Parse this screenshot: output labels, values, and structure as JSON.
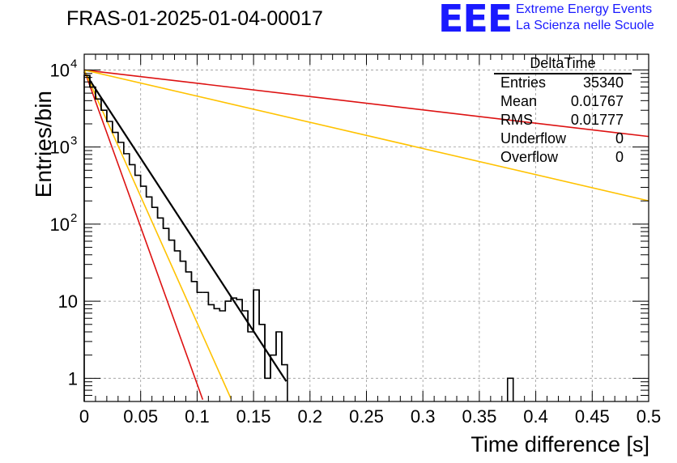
{
  "header": {
    "title": "FRAS-01-2025-01-04-00017",
    "logo_text": "EEE",
    "logo_line1": "Extreme Energy Events",
    "logo_line2": "La Scienza nelle Scuole",
    "logo_color": "#1a1aff"
  },
  "stats": {
    "title": "DeltaTime",
    "rows": [
      {
        "label": "Entries",
        "value": "35340"
      },
      {
        "label": "Mean",
        "value": "0.01767"
      },
      {
        "label": "RMS",
        "value": "0.01777"
      },
      {
        "label": "Underflow",
        "value": "0"
      },
      {
        "label": "Overflow",
        "value": "0"
      }
    ]
  },
  "chart_data": {
    "type": "histogram",
    "title": "FRAS-01-2025-01-04-00017",
    "xlabel": "Time difference [s]",
    "ylabel": "Entries/bin",
    "xlim": [
      0,
      0.5
    ],
    "ylim": [
      0.5,
      16000
    ],
    "yscale": "log",
    "grid": true,
    "x_ticks": [
      "0",
      "0.05",
      "0.1",
      "0.15",
      "0.2",
      "0.25",
      "0.3",
      "0.35",
      "0.4",
      "0.45",
      "0.5"
    ],
    "x_tick_values": [
      0,
      0.05,
      0.1,
      0.15,
      0.2,
      0.25,
      0.3,
      0.35,
      0.4,
      0.45,
      0.5
    ],
    "y_ticks": [
      {
        "value": 1,
        "label": "1"
      },
      {
        "value": 10,
        "label": "10"
      },
      {
        "value": 100,
        "label": "10",
        "exp": "2"
      },
      {
        "value": 1000,
        "label": "10",
        "exp": "3"
      },
      {
        "value": 10000,
        "label": "10",
        "exp": "4"
      }
    ],
    "histogram": {
      "name": "DeltaTime",
      "bin_width": 0.005,
      "x_start": 0,
      "color": "#000000",
      "values": [
        8500,
        6000,
        4200,
        3000,
        2150,
        1550,
        1150,
        820,
        590,
        430,
        310,
        225,
        165,
        120,
        88,
        62,
        45,
        33,
        24,
        18,
        13,
        13,
        9,
        8,
        7.5,
        10,
        11,
        10.5,
        7.5,
        4,
        14,
        5,
        1,
        2,
        4,
        1.5,
        0.5,
        0.5,
        0.5,
        0.5,
        0.5,
        0.5,
        0.5,
        0.5,
        0.5,
        0.5,
        0.5,
        0.5,
        0.5,
        0.5,
        0.5,
        0.5,
        0.5,
        0.5,
        0.5,
        0.5,
        0.5,
        0.5,
        0.5,
        0.5,
        0.5,
        0.5,
        0.5,
        0.5,
        0.5,
        0.5,
        0.5,
        0.5,
        0.5,
        0.5,
        0.5,
        0.5,
        0.5,
        0.5,
        0.5,
        1,
        0.5,
        0.5,
        0.5,
        0.5,
        0.5,
        0.5,
        0.5,
        0.5,
        0.5,
        0.5,
        0.5,
        0.5,
        0.5,
        0.5,
        0.5,
        0.5,
        0.5,
        0.5,
        0.5,
        0.5,
        0.5,
        0.5,
        0.5,
        0.5
      ]
    },
    "fits": [
      {
        "name": "fit",
        "color": "#000000",
        "amplitude": 9500,
        "tau": 0.01935,
        "x_end": 0.179,
        "width": 2.2
      },
      {
        "name": "steep red",
        "color": "#dd1111",
        "amplitude": 10000,
        "tau": 0.01066,
        "x_end": 0.105,
        "width": 1.6
      },
      {
        "name": "steep yellow",
        "color": "#ffc200",
        "amplitude": 10000,
        "tau": 0.01324,
        "x_end": 0.13,
        "width": 1.6
      },
      {
        "name": "slow red",
        "color": "#dd1111",
        "amplitude": 10000,
        "tau": 0.2516,
        "x_end": 0.5,
        "width": 1.6
      },
      {
        "name": "slow yellow",
        "color": "#ffc200",
        "amplitude": 10000,
        "tau": 0.1279,
        "x_end": 0.5,
        "width": 1.6
      }
    ]
  }
}
